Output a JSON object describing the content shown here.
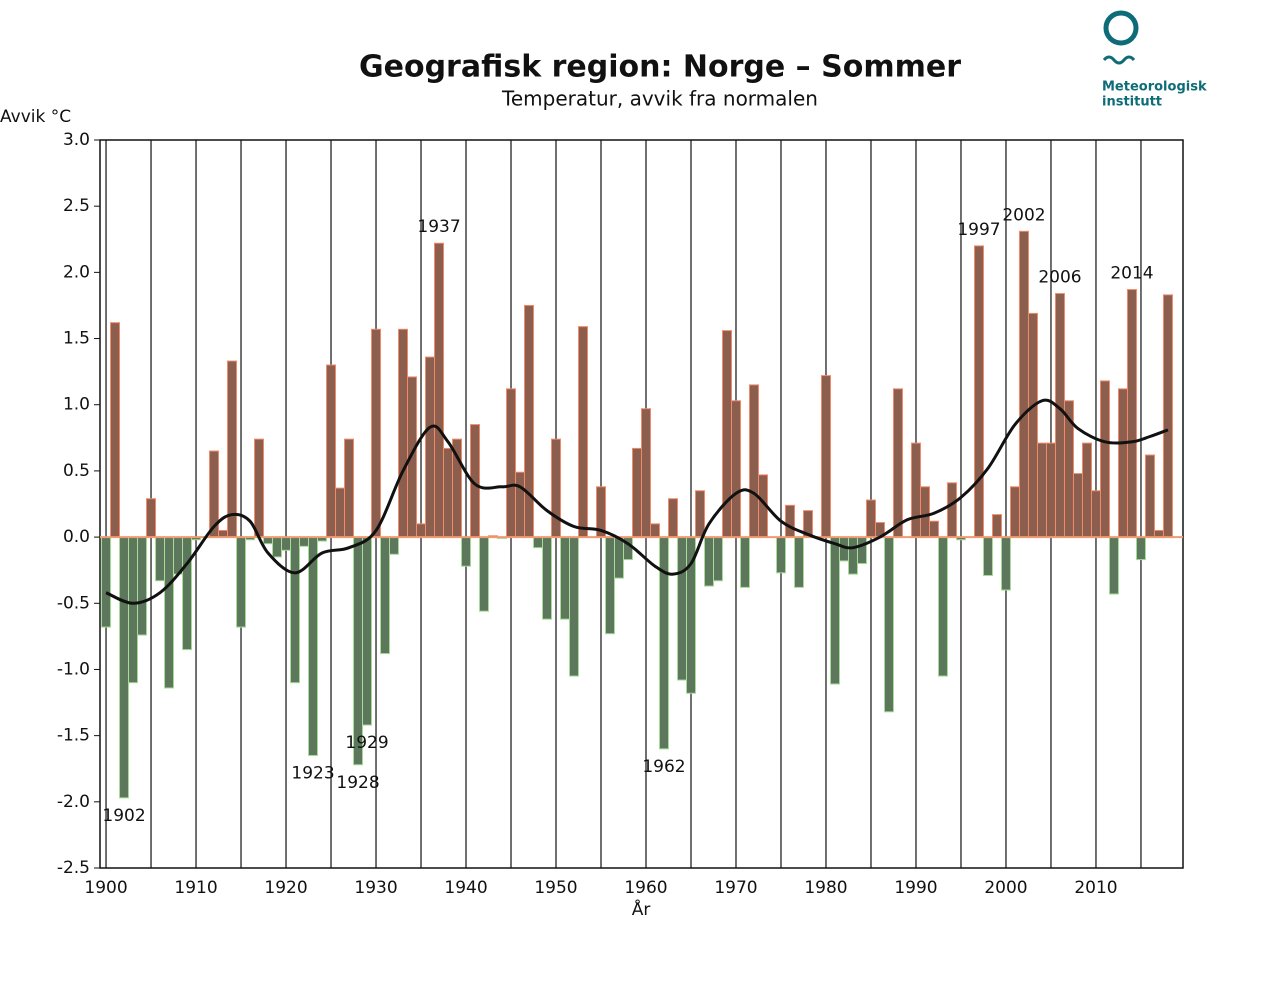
{
  "chart_data": {
    "type": "bar",
    "title": "Geografisk region: Norge – Sommer",
    "subtitle": "Temperatur, avvik fra normalen",
    "y_label": "Avvik °C",
    "x_label": "År",
    "logo": [
      "Meteorologisk",
      "institutt"
    ],
    "x": [
      1900,
      1901,
      1902,
      1903,
      1904,
      1905,
      1906,
      1907,
      1908,
      1909,
      1910,
      1911,
      1912,
      1913,
      1914,
      1915,
      1916,
      1917,
      1918,
      1919,
      1920,
      1921,
      1922,
      1923,
      1924,
      1925,
      1926,
      1927,
      1928,
      1929,
      1930,
      1931,
      1932,
      1933,
      1934,
      1935,
      1936,
      1937,
      1938,
      1939,
      1940,
      1941,
      1942,
      1943,
      1944,
      1945,
      1946,
      1947,
      1948,
      1949,
      1950,
      1951,
      1952,
      1953,
      1954,
      1955,
      1956,
      1957,
      1958,
      1959,
      1960,
      1961,
      1962,
      1963,
      1964,
      1965,
      1966,
      1967,
      1968,
      1969,
      1970,
      1971,
      1972,
      1973,
      1974,
      1975,
      1976,
      1977,
      1978,
      1979,
      1980,
      1981,
      1982,
      1983,
      1984,
      1985,
      1986,
      1987,
      1988,
      1989,
      1990,
      1991,
      1992,
      1993,
      1994,
      1995,
      1996,
      1997,
      1998,
      1999,
      2000,
      2001,
      2002,
      2003,
      2004,
      2005,
      2006,
      2007,
      2008,
      2009,
      2010,
      2011,
      2012,
      2013,
      2014,
      2015,
      2016,
      2017,
      2018
    ],
    "values": [
      -0.68,
      1.62,
      -1.97,
      -1.1,
      -0.74,
      0.29,
      -0.33,
      -1.14,
      -0.28,
      -0.85,
      -0.02,
      0.0,
      0.65,
      0.05,
      1.33,
      -0.68,
      -0.02,
      0.74,
      -0.05,
      -0.15,
      -0.1,
      -1.1,
      -0.07,
      -1.65,
      -0.03,
      1.3,
      0.37,
      0.74,
      -1.72,
      -1.42,
      1.57,
      -0.88,
      -0.13,
      1.57,
      1.21,
      0.1,
      1.36,
      2.22,
      0.67,
      0.74,
      -0.22,
      0.85,
      -0.56,
      0.01,
      -0.01,
      1.12,
      0.49,
      1.75,
      -0.08,
      -0.62,
      0.74,
      -0.62,
      -1.05,
      1.59,
      0.0,
      0.38,
      -0.73,
      -0.31,
      -0.17,
      0.67,
      0.97,
      0.1,
      -1.6,
      0.29,
      -1.08,
      -1.18,
      0.35,
      -0.37,
      -0.33,
      1.56,
      1.03,
      -0.38,
      1.15,
      0.47,
      0.0,
      -0.27,
      0.24,
      -0.38,
      0.2,
      0.0,
      1.22,
      -1.11,
      -0.18,
      -0.28,
      -0.2,
      0.28,
      0.11,
      -1.32,
      1.12,
      0.0,
      0.71,
      0.38,
      0.12,
      -1.05,
      0.41,
      -0.02,
      0.0,
      2.2,
      -0.29,
      0.17,
      -0.4,
      0.38,
      2.31,
      1.69,
      0.71,
      0.71,
      1.84,
      1.03,
      0.48,
      0.71,
      0.35,
      1.18,
      -0.43,
      1.12,
      1.87,
      -0.17,
      0.62,
      0.05,
      1.83
    ],
    "positive_color": "#8c5e4e",
    "negative_color": "#5c775c",
    "trend": {
      "color": "#111111",
      "x": [
        1900,
        1903,
        1906,
        1909,
        1912,
        1914,
        1916,
        1918,
        1921,
        1924,
        1927,
        1930,
        1933,
        1936,
        1938,
        1941,
        1944,
        1946,
        1949,
        1952,
        1955,
        1958,
        1961,
        1963,
        1965,
        1967,
        1970,
        1972,
        1975,
        1978,
        1981,
        1983,
        1986,
        1989,
        1992,
        1995,
        1998,
        2001,
        2004,
        2006,
        2008,
        2011,
        2014,
        2016,
        2018
      ],
      "values": [
        -0.42,
        -0.5,
        -0.42,
        -0.2,
        0.08,
        0.17,
        0.12,
        -0.12,
        -0.27,
        -0.12,
        -0.08,
        0.05,
        0.5,
        0.83,
        0.72,
        0.4,
        0.38,
        0.38,
        0.2,
        0.08,
        0.05,
        -0.05,
        -0.22,
        -0.28,
        -0.2,
        0.1,
        0.33,
        0.33,
        0.12,
        0.02,
        -0.05,
        -0.08,
        0.0,
        0.13,
        0.18,
        0.3,
        0.52,
        0.85,
        1.03,
        0.97,
        0.82,
        0.72,
        0.72,
        0.76,
        0.81
      ]
    },
    "annotations": [
      "1902",
      "1923",
      "1928",
      "1929",
      "1937",
      "1962",
      "1997",
      "2002",
      "2006",
      "2014"
    ],
    "xlim": [
      1899.33,
      2019.67
    ],
    "ylim": [
      -2.5,
      3.0
    ],
    "xticks": [
      1900,
      1910,
      1920,
      1930,
      1940,
      1950,
      1960,
      1970,
      1980,
      1990,
      2000,
      2010
    ],
    "xgrid_minor": [
      1905,
      1915,
      1925,
      1935,
      1945,
      1955,
      1965,
      1975,
      1985,
      1995,
      2005,
      2015
    ],
    "yticks": [
      {
        "value": -2.5,
        "label": "-2.5"
      },
      {
        "value": -2,
        "label": "-2.0"
      },
      {
        "value": -1.5,
        "label": "-1.5"
      },
      {
        "value": -1,
        "label": "-1.0"
      },
      {
        "value": -0.5,
        "label": "-0.5"
      },
      {
        "value": 0,
        "label": "0.0"
      },
      {
        "value": 0.5,
        "label": "0.5"
      },
      {
        "value": 1,
        "label": "1.0"
      },
      {
        "value": 1.5,
        "label": "1.5"
      },
      {
        "value": 2,
        "label": "2.0"
      },
      {
        "value": 2.5,
        "label": "2.5"
      },
      {
        "value": 3,
        "label": "3.0"
      }
    ],
    "grid": true
  }
}
